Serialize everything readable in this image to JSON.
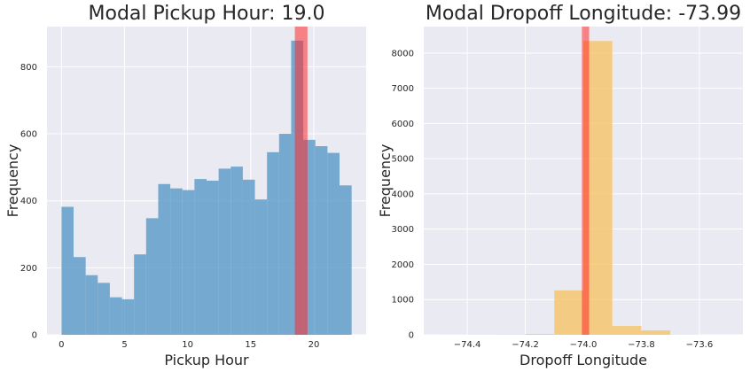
{
  "chart_data": [
    {
      "type": "bar",
      "title": "Modal Pickup Hour: 19.0",
      "xlabel": "Pickup Hour",
      "ylabel": "Frequency",
      "xlim": [
        -1.15,
        24.15
      ],
      "ylim": [
        0,
        920
      ],
      "xticks": [
        0,
        5,
        10,
        15,
        20
      ],
      "xtick_labels": [
        "0",
        "5",
        "10",
        "15",
        "20"
      ],
      "yticks": [
        0,
        200,
        400,
        600,
        800
      ],
      "ytick_labels": [
        "0",
        "200",
        "400",
        "600",
        "800"
      ],
      "grid": true,
      "bar_color": "#5b9bc8",
      "bin_edges": [
        0,
        0.958,
        1.917,
        2.875,
        3.833,
        4.792,
        5.75,
        6.708,
        7.667,
        8.625,
        9.583,
        10.542,
        11.5,
        12.458,
        13.417,
        14.375,
        15.333,
        16.292,
        17.25,
        18.208,
        19.167,
        20.125,
        21.083,
        22.042,
        23
      ],
      "values": [
        382,
        232,
        178,
        155,
        112,
        106,
        240,
        348,
        450,
        437,
        432,
        465,
        460,
        496,
        502,
        463,
        404,
        545,
        600,
        878,
        582,
        563,
        543,
        446
      ],
      "mode_band": {
        "x0": 18.5,
        "x1": 19.5,
        "color": "#ff2a2a"
      }
    },
    {
      "type": "bar",
      "title": "Modal Dropoff Longitude: -73.99",
      "xlabel": "Dropoff Longitude",
      "ylabel": "Frequency",
      "xlim": [
        -74.55,
        -73.45
      ],
      "ylim": [
        0,
        8750
      ],
      "xticks": [
        -74.4,
        -74.2,
        -74.0,
        -73.8,
        -73.6
      ],
      "xtick_labels": [
        "−74.4",
        "−74.2",
        "−74.0",
        "−73.8",
        "−73.6"
      ],
      "yticks": [
        0,
        1000,
        2000,
        3000,
        4000,
        5000,
        6000,
        7000,
        8000
      ],
      "ytick_labels": [
        "0",
        "1000",
        "2000",
        "3000",
        "4000",
        "5000",
        "6000",
        "7000",
        "8000"
      ],
      "grid": true,
      "bar_color": "#f5c56a",
      "bin_edges": [
        -74.5,
        -74.4,
        -74.3,
        -74.2,
        -74.1,
        -74.0,
        -73.9,
        -73.8,
        -73.7,
        -73.6,
        -73.5
      ],
      "values": [
        3,
        5,
        8,
        25,
        1260,
        8340,
        250,
        125,
        5,
        0
      ],
      "mode_band": {
        "x0": -74.005,
        "x1": -73.98,
        "color": "#ff2a2a"
      }
    }
  ]
}
